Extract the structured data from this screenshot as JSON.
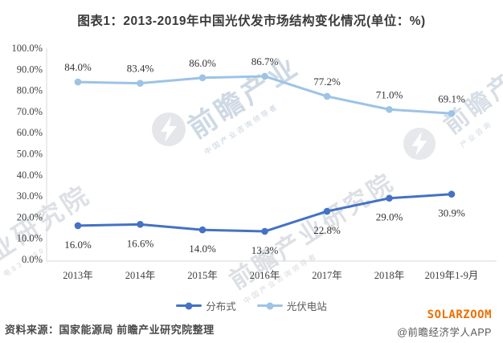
{
  "title": "图表1：2013-2019年中国光伏发市场结构变化情况(单位：%)",
  "chart_data": {
    "type": "line",
    "categories": [
      "2013年",
      "2014年",
      "2015年",
      "2016年",
      "2017年",
      "2018年",
      "2019年1-9月"
    ],
    "series": [
      {
        "name": "分布式",
        "color": "#4472C4",
        "values": [
          16.0,
          16.6,
          14.0,
          13.3,
          22.8,
          29.0,
          30.9
        ],
        "label_position": "below"
      },
      {
        "name": "光伏电站",
        "color": "#9DC3E6",
        "values": [
          84.0,
          83.4,
          86.0,
          86.7,
          77.2,
          71.0,
          69.1
        ],
        "label_position": "above"
      }
    ],
    "title": "图表1：2013-2019年中国光伏发市场结构变化情况(单位：%)",
    "xlabel": "",
    "ylabel": "",
    "ylim": [
      0,
      100
    ],
    "y_tick_step": 10,
    "y_tick_suffix": "%",
    "grid": false,
    "legend_position": "bottom",
    "data_labels": true,
    "axis_color": "#D9D9D9"
  },
  "footer": {
    "source": "资料来源：国家能源局 前瞻产业研究院整理",
    "brand": "SOLARZOOM",
    "credit": "@前瞻经济学人APP"
  },
  "watermarks": [
    {
      "big": "前瞻产业",
      "small": "中国产业咨询领导者"
    },
    {
      "big": "前瞻产业",
      "small": "产业咨询"
    },
    {
      "big": "业研究院",
      "small": "电839599"
    },
    {
      "big": "前瞻产业研究院",
      "small": "中国产业咨询领导者"
    }
  ],
  "colors": {
    "series_dark_blue": "#4472C4",
    "series_light_blue": "#9DC3E6",
    "brand_orange": "#F06E00",
    "axis_gray": "#D9D9D9",
    "text_dark": "#404040"
  }
}
